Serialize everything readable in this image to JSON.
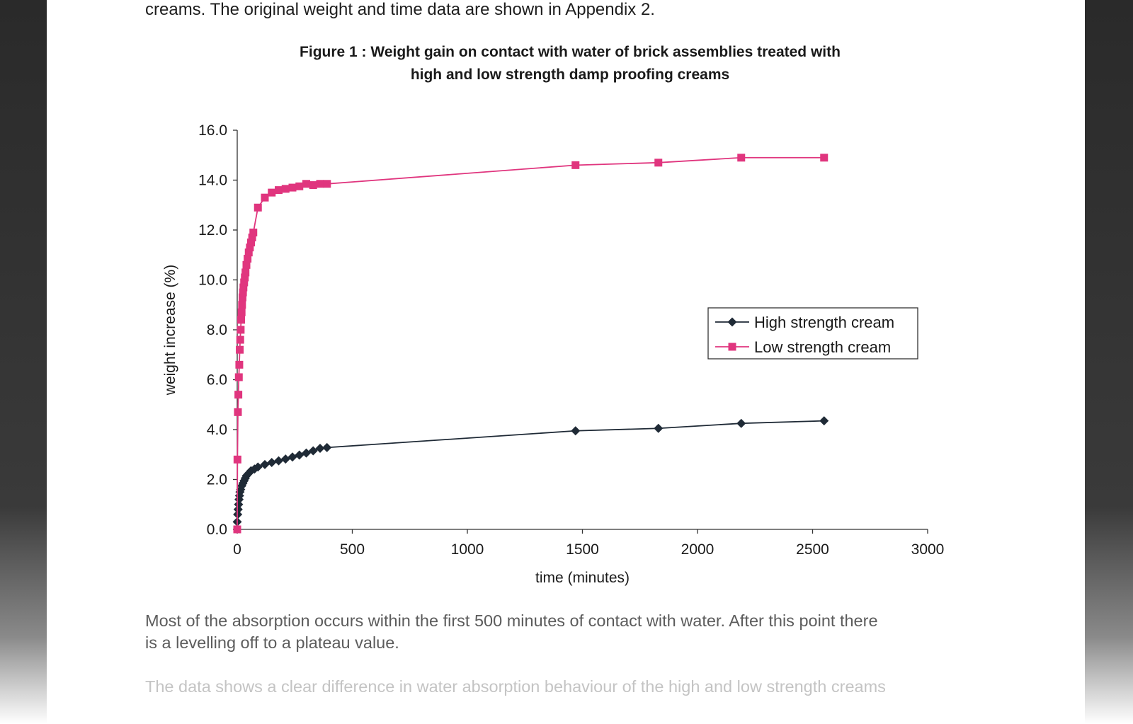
{
  "document": {
    "intro_line": "creams. The original weight and time data are shown in Appendix 2.",
    "figure_title_line1": "Figure 1 : Weight gain on contact with water of brick assemblies treated with",
    "figure_title_line2": "high and low strength damp proofing creams",
    "para1_line1": "Most of the absorption occurs within the first 500 minutes of contact with water.  After this point there",
    "para1_line2": "is a levelling off to a plateau value.",
    "para2_line1": "The data shows a clear difference in water absorption behaviour of the high and low strength creams"
  },
  "chart_data": {
    "type": "line",
    "title": "Figure 1 : Weight gain on contact with water of brick assemblies treated with high and low strength damp proofing creams",
    "xlabel": "time (minutes)",
    "ylabel": "weight increase (%)",
    "xlim": [
      0,
      3000
    ],
    "ylim": [
      0,
      16
    ],
    "x_ticks": [
      "0",
      "500",
      "1000",
      "1500",
      "2000",
      "2500",
      "3000"
    ],
    "y_ticks": [
      "0.0",
      "2.0",
      "4.0",
      "6.0",
      "8.0",
      "10.0",
      "12.0",
      "14.0",
      "16.0"
    ],
    "legend_position": "right",
    "series": [
      {
        "name": "High strength cream",
        "color": "#1f2a36",
        "marker": "diamond",
        "x": [
          0,
          2,
          4,
          6,
          8,
          10,
          12,
          15,
          20,
          25,
          30,
          35,
          40,
          50,
          60,
          75,
          90,
          120,
          150,
          180,
          210,
          240,
          270,
          300,
          330,
          360,
          390,
          1470,
          1830,
          2190,
          2550
        ],
        "y": [
          0.3,
          0.6,
          0.8,
          1.0,
          1.2,
          1.35,
          1.5,
          1.6,
          1.75,
          1.85,
          1.95,
          2.05,
          2.15,
          2.25,
          2.35,
          2.42,
          2.5,
          2.6,
          2.68,
          2.75,
          2.82,
          2.9,
          2.98,
          3.06,
          3.15,
          3.25,
          3.28,
          3.95,
          4.05,
          4.25,
          4.35
        ]
      },
      {
        "name": "Low strength cream",
        "color": "#e0357e",
        "marker": "square",
        "x": [
          0,
          1,
          3,
          5,
          7,
          9,
          11,
          13,
          15,
          17,
          19,
          21,
          23,
          25,
          27,
          30,
          33,
          36,
          40,
          45,
          50,
          55,
          60,
          65,
          70,
          90,
          120,
          150,
          180,
          210,
          240,
          270,
          300,
          330,
          360,
          390,
          1470,
          1830,
          2190,
          2550
        ],
        "y": [
          0,
          2.8,
          4.7,
          5.4,
          6.1,
          6.6,
          7.2,
          7.6,
          8.0,
          8.4,
          8.7,
          9.0,
          9.3,
          9.5,
          9.7,
          9.9,
          10.1,
          10.3,
          10.6,
          10.85,
          11.1,
          11.3,
          11.5,
          11.7,
          11.9,
          12.9,
          13.3,
          13.5,
          13.6,
          13.65,
          13.7,
          13.75,
          13.85,
          13.8,
          13.85,
          13.85,
          14.6,
          14.7,
          14.9,
          14.9
        ]
      }
    ]
  }
}
